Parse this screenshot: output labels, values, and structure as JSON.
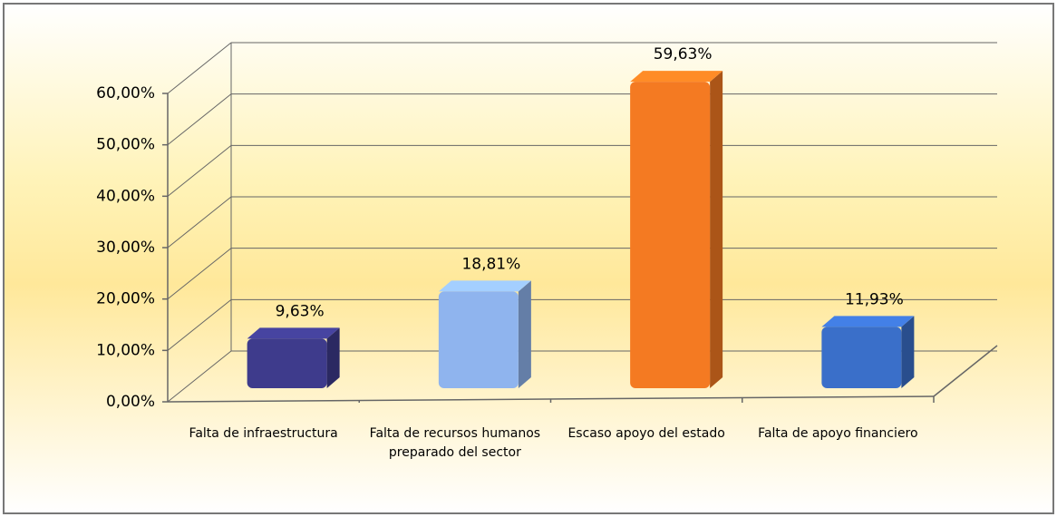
{
  "chart_data": {
    "type": "bar3d",
    "categories": [
      "Falta de infraestructura",
      "Falta de recursos humanos preparado del sector",
      "Escaso apoyo del estado",
      "Falta de apoyo financiero"
    ],
    "values": [
      9.63,
      18.81,
      59.63,
      11.93
    ],
    "value_labels": [
      "9,63%",
      "18,81%",
      "59,63%",
      "11,93%"
    ],
    "colors": [
      "#3e3b8c",
      "#8fb4ee",
      "#f47a22",
      "#3a6fc9"
    ],
    "ylim": [
      0,
      60
    ],
    "yticks": [
      {
        "value": 0,
        "label": "0,00%"
      },
      {
        "value": 10,
        "label": "10,00%"
      },
      {
        "value": 20,
        "label": "20,00%"
      },
      {
        "value": 30,
        "label": "30,00%"
      },
      {
        "value": 40,
        "label": "40,00%"
      },
      {
        "value": 50,
        "label": "50,00%"
      },
      {
        "value": 60,
        "label": "60,00%"
      }
    ],
    "grid": true
  }
}
